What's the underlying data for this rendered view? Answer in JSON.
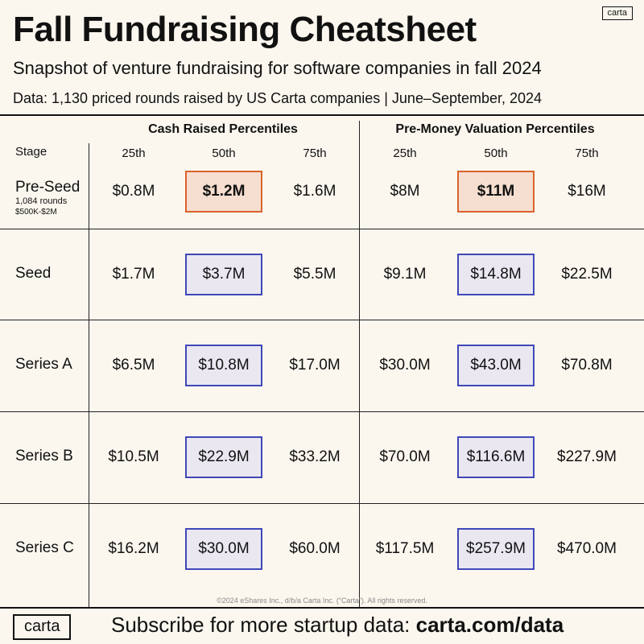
{
  "brand": {
    "logo": "carta"
  },
  "header": {
    "title": "Fall Fundraising Cheatsheet",
    "subtitle": "Snapshot of venture fundraising for software companies in fall 2024",
    "data_note": "Data: 1,130 priced rounds raised by US Carta companies | June–September, 2024"
  },
  "table": {
    "stage_label": "Stage",
    "groups": [
      "Cash Raised Percentiles",
      "Pre-Money Valuation Percentiles"
    ],
    "percentiles": [
      "25th",
      "50th",
      "75th"
    ]
  },
  "chart_data": {
    "type": "table",
    "title": "Fall Fundraising Cheatsheet",
    "columns": [
      "Cash Raised 25th",
      "Cash Raised 50th",
      "Cash Raised 75th",
      "Pre-Money Valuation 25th",
      "Pre-Money Valuation 50th",
      "Pre-Money Valuation 75th"
    ],
    "rows": [
      {
        "stage": "Pre-Seed",
        "note": "1,084 rounds",
        "range": "$500K-$2M",
        "cash": [
          "$0.8M",
          "$1.2M",
          "$1.6M"
        ],
        "valuation": [
          "$8M",
          "$11M",
          "$16M"
        ]
      },
      {
        "stage": "Seed",
        "note": "",
        "range": "",
        "cash": [
          "$1.7M",
          "$3.7M",
          "$5.5M"
        ],
        "valuation": [
          "$9.1M",
          "$14.8M",
          "$22.5M"
        ]
      },
      {
        "stage": "Series A",
        "note": "",
        "range": "",
        "cash": [
          "$6.5M",
          "$10.8M",
          "$17.0M"
        ],
        "valuation": [
          "$30.0M",
          "$43.0M",
          "$70.8M"
        ]
      },
      {
        "stage": "Series B",
        "note": "",
        "range": "",
        "cash": [
          "$10.5M",
          "$22.9M",
          "$33.2M"
        ],
        "valuation": [
          "$70.0M",
          "$116.6M",
          "$227.9M"
        ]
      },
      {
        "stage": "Series C",
        "note": "",
        "range": "",
        "cash": [
          "$16.2M",
          "$30.0M",
          "$60.0M"
        ],
        "valuation": [
          "$117.5M",
          "$257.9M",
          "$470.0M"
        ]
      }
    ],
    "highlight_colors": {
      "pre_seed_median": "#d9622b",
      "median": "#3f48b8"
    }
  },
  "footer": {
    "copyright": "©2024 eShares Inc., d/b/a Carta Inc. (“Carta”). All rights reserved.",
    "logo": "carta",
    "cta_text": "Subscribe for more startup data: ",
    "cta_link": "carta.com/data"
  }
}
